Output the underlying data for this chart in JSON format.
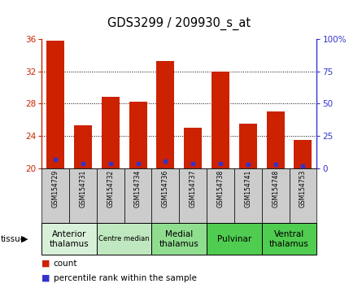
{
  "title": "GDS3299 / 209930_s_at",
  "samples": [
    "GSM154729",
    "GSM154731",
    "GSM154732",
    "GSM154734",
    "GSM154736",
    "GSM154737",
    "GSM154738",
    "GSM154741",
    "GSM154748",
    "GSM154753"
  ],
  "bar_values": [
    35.8,
    25.3,
    28.8,
    28.2,
    33.3,
    25.0,
    32.0,
    25.5,
    27.0,
    23.5
  ],
  "percentile_values": [
    7,
    4,
    4,
    4,
    6,
    4,
    4,
    3,
    3,
    2
  ],
  "ylim": [
    20,
    36
  ],
  "yticks": [
    20,
    24,
    28,
    32,
    36
  ],
  "right_yticks": [
    0,
    25,
    50,
    75,
    100
  ],
  "right_ylim": [
    0,
    100
  ],
  "bar_color": "#cc2200",
  "blue_color": "#3333cc",
  "bar_width": 0.65,
  "tissue_groups": [
    {
      "label": "Anterior\nthalamus",
      "spans": [
        0,
        2
      ],
      "color": "#d8f0d8",
      "fontsize": 7.5
    },
    {
      "label": "Centre median",
      "spans": [
        2,
        4
      ],
      "color": "#c0e8c0",
      "fontsize": 6.0
    },
    {
      "label": "Medial\nthalamus",
      "spans": [
        4,
        6
      ],
      "color": "#90dd90",
      "fontsize": 7.5
    },
    {
      "label": "Pulvinar",
      "spans": [
        6,
        8
      ],
      "color": "#50cc50",
      "fontsize": 7.5
    },
    {
      "label": "Ventral\nthalamus",
      "spans": [
        8,
        10
      ],
      "color": "#50cc50",
      "fontsize": 7.5
    }
  ],
  "left_axis_color": "#cc2200",
  "right_axis_color": "#3333cc",
  "bg_sample_color": "#cccccc",
  "title_fontsize": 10.5,
  "grid_lines": [
    24,
    28,
    32
  ]
}
